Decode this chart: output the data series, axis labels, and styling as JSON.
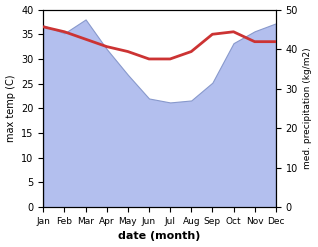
{
  "months": [
    "Jan",
    "Feb",
    "Mar",
    "Apr",
    "May",
    "Jun",
    "Jul",
    "Aug",
    "Sep",
    "Oct",
    "Nov",
    "Dec"
  ],
  "temp_max": [
    36.5,
    35.5,
    34.0,
    32.5,
    31.5,
    30.0,
    30.0,
    31.5,
    35.0,
    35.5,
    33.5,
    33.5
  ],
  "precipitation": [
    46,
    44,
    47.5,
    40,
    33.5,
    27.5,
    26.5,
    27.0,
    31.5,
    41.5,
    44.5,
    46.5
  ],
  "temp_color": "#cc3333",
  "precip_fill_color": "#b3bfee",
  "precip_edge_color": "#8899cc",
  "temp_ylim": [
    0,
    40
  ],
  "precip_ylim": [
    0,
    50
  ],
  "xlabel": "date (month)",
  "ylabel_left": "max temp (C)",
  "ylabel_right": "med. precipitation (kg/m2)",
  "background_color": "#ffffff",
  "temp_linewidth": 2.0
}
